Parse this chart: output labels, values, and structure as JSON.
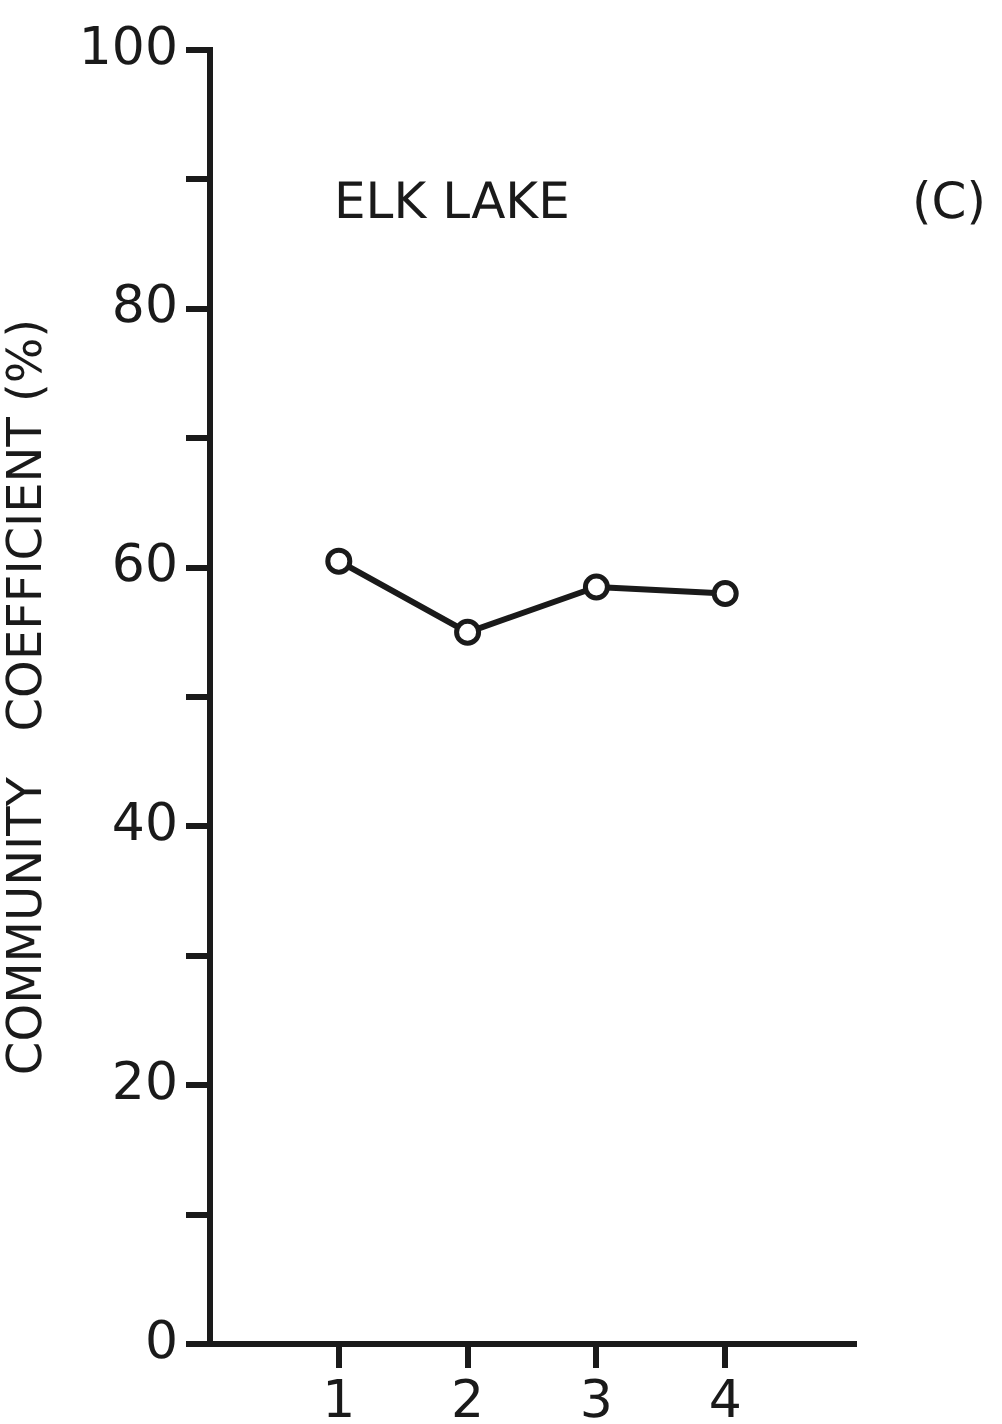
{
  "chart_data": {
    "type": "line",
    "title": "ELK LAKE",
    "ylabel": "COMMUNITY   COEFFICIENT (%)",
    "annotations": [
      "(C)"
    ],
    "x": [
      1,
      2,
      3,
      4
    ],
    "series": [
      {
        "color": "#1a1a1a",
        "values": [
          60.5,
          55,
          58.5,
          58
        ]
      }
    ],
    "xlim": [
      0,
      5
    ],
    "xticks": [
      1,
      2,
      3,
      4
    ],
    "ylim": [
      0,
      100
    ],
    "yticks": [
      0,
      {
        "value": 10,
        "label": null
      },
      20,
      {
        "value": 30,
        "label": null
      },
      40,
      {
        "value": 50,
        "label": null
      },
      60,
      {
        "value": 70,
        "label": null
      },
      80,
      {
        "value": 90,
        "label": null
      },
      100
    ],
    "grid": false,
    "legend": false,
    "marker": "circle",
    "line_style": "solid"
  }
}
